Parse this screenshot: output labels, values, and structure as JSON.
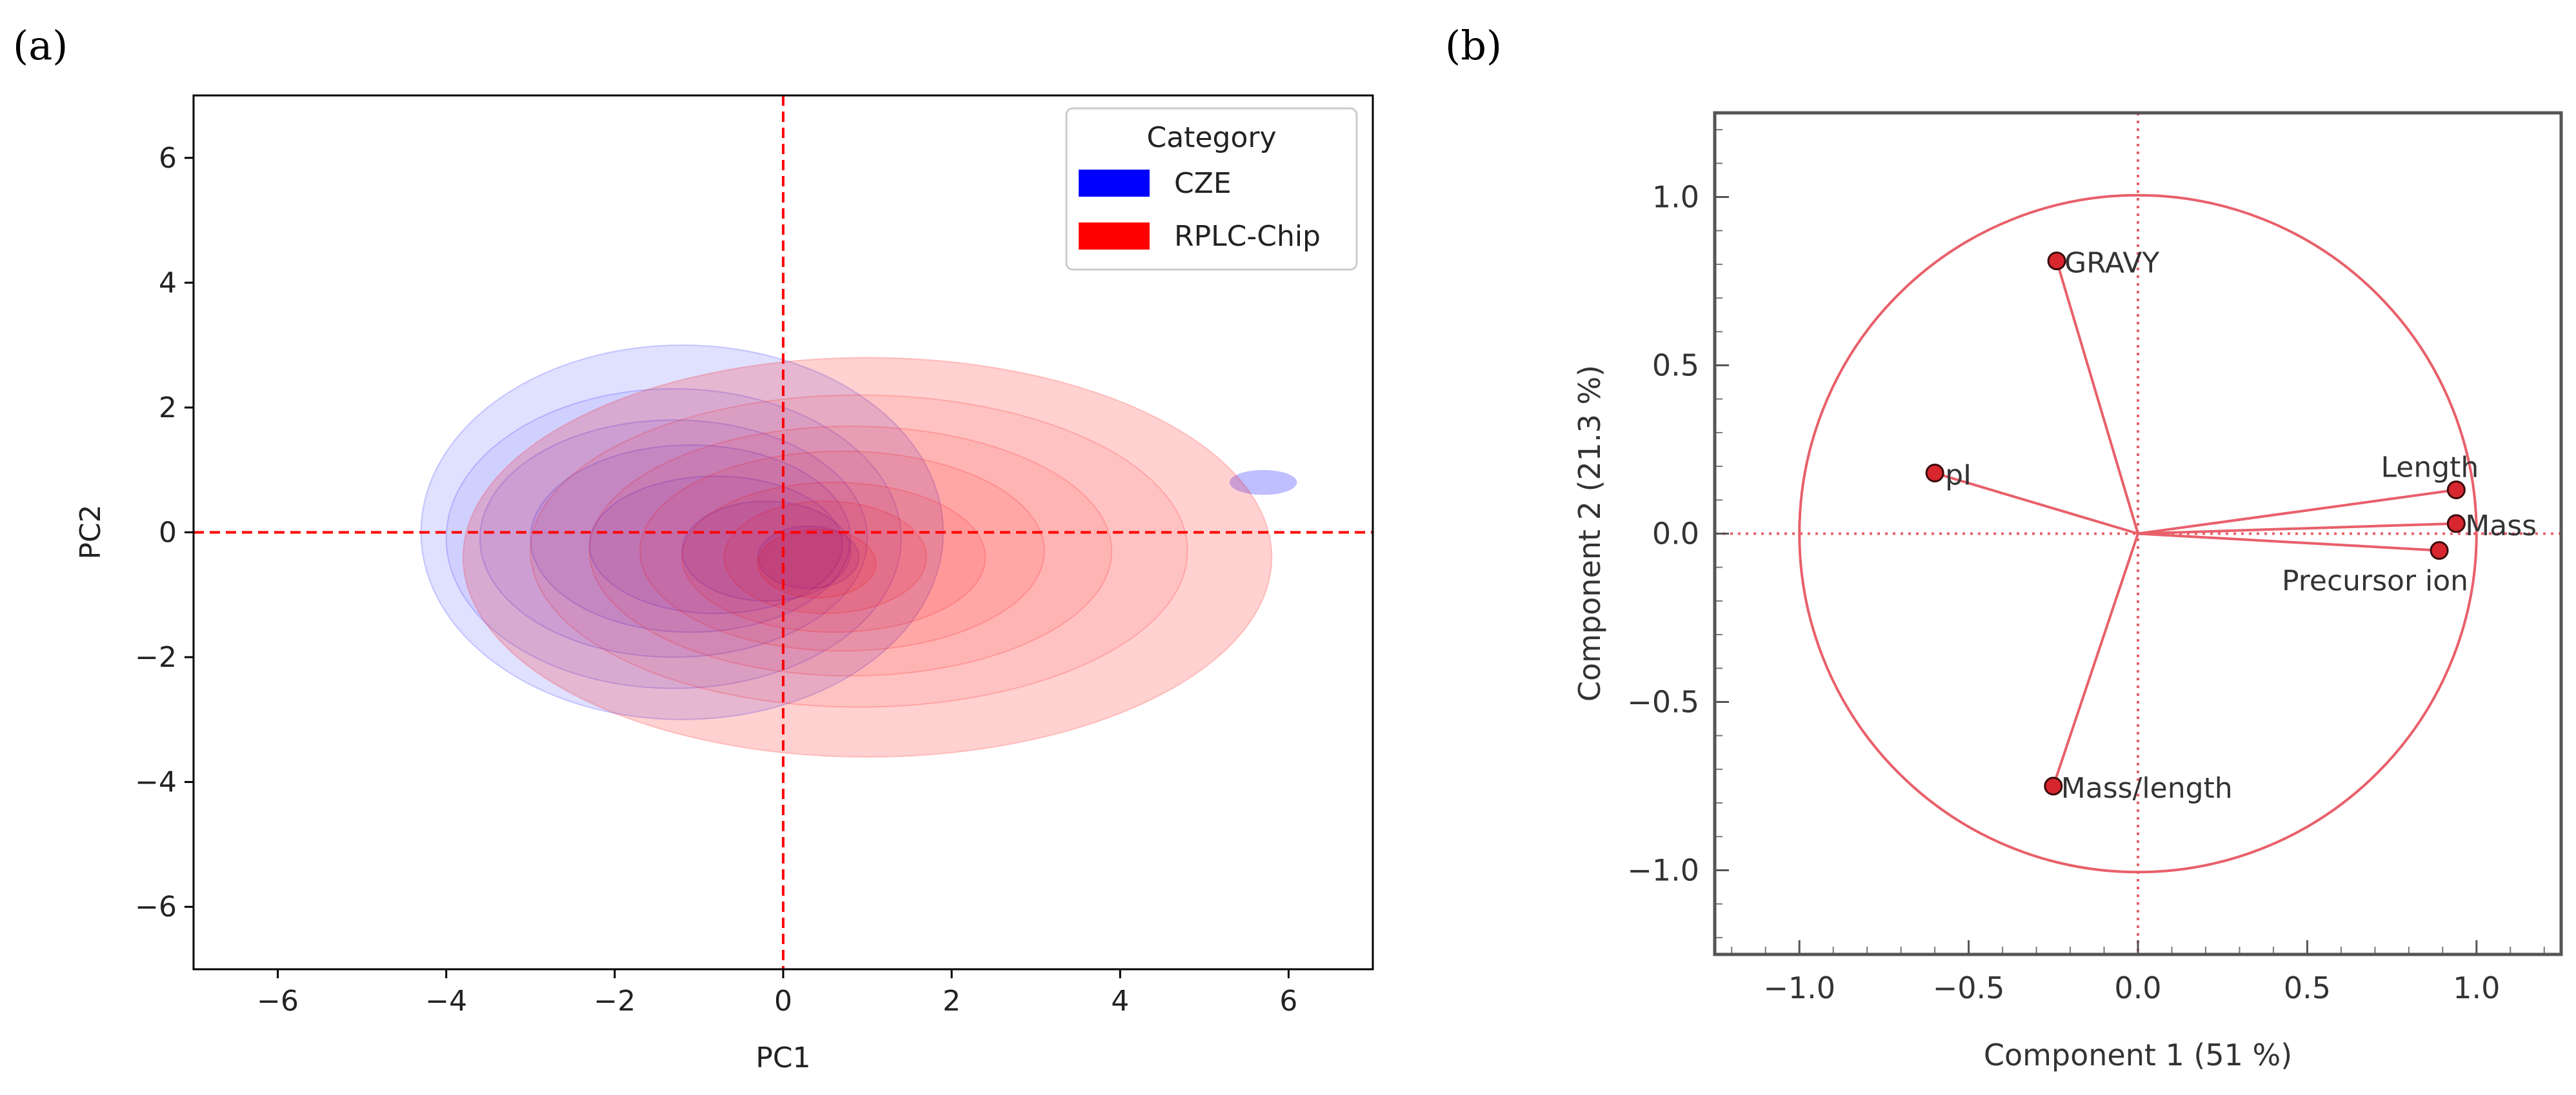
{
  "chart_data": [
    {
      "panel": "(a)",
      "type": "kde-density-contour",
      "xlabel": "PC1",
      "ylabel": "PC2",
      "xlim": [
        -7,
        7
      ],
      "ylim": [
        -7,
        7
      ],
      "xticks": [
        -6,
        -4,
        -2,
        0,
        2,
        4,
        6
      ],
      "yticks": [
        -6,
        -4,
        -2,
        0,
        2,
        4,
        6
      ],
      "reference_lines": {
        "x": 0,
        "y": 0,
        "color": "#ff0000",
        "style": "dashed"
      },
      "legend": {
        "title": "Category",
        "position": "top-right",
        "entries": [
          {
            "label": "CZE",
            "color": "#0000ff"
          },
          {
            "label": "RPLC-Chip",
            "color": "#ff0000"
          }
        ]
      },
      "series": [
        {
          "name": "CZE",
          "color": "#0000ff",
          "levels": [
            {
              "cx": -1.2,
              "cy": 0.0,
              "rx": 3.1,
              "ry": 3.0,
              "opacity": 0.12
            },
            {
              "cx": -1.3,
              "cy": -0.1,
              "rx": 2.7,
              "ry": 2.4,
              "opacity": 0.07
            },
            {
              "cx": -1.3,
              "cy": -0.1,
              "rx": 2.3,
              "ry": 1.9,
              "opacity": 0.07
            },
            {
              "cx": -1.1,
              "cy": -0.1,
              "rx": 1.9,
              "ry": 1.5,
              "opacity": 0.07
            },
            {
              "cx": -0.8,
              "cy": -0.2,
              "rx": 1.5,
              "ry": 1.1,
              "opacity": 0.07
            },
            {
              "cx": -0.2,
              "cy": -0.3,
              "rx": 1.0,
              "ry": 0.8,
              "opacity": 0.08
            },
            {
              "cx": 0.3,
              "cy": -0.4,
              "rx": 0.6,
              "ry": 0.5,
              "opacity": 0.1
            }
          ],
          "tail": {
            "cx": 5.7,
            "cy": 0.8,
            "rx": 0.4,
            "ry": 0.2,
            "opacity": 0.25
          }
        },
        {
          "name": "RPLC-Chip",
          "color": "#ff0000",
          "levels": [
            {
              "cx": 1.0,
              "cy": -0.4,
              "rx": 4.8,
              "ry": 3.2,
              "opacity": 0.18
            },
            {
              "cx": 0.9,
              "cy": -0.3,
              "rx": 3.9,
              "ry": 2.5,
              "opacity": 0.07
            },
            {
              "cx": 0.8,
              "cy": -0.3,
              "rx": 3.1,
              "ry": 2.0,
              "opacity": 0.07
            },
            {
              "cx": 0.7,
              "cy": -0.3,
              "rx": 2.4,
              "ry": 1.6,
              "opacity": 0.07
            },
            {
              "cx": 0.6,
              "cy": -0.4,
              "rx": 1.8,
              "ry": 1.2,
              "opacity": 0.08
            },
            {
              "cx": 0.5,
              "cy": -0.4,
              "rx": 1.2,
              "ry": 0.9,
              "opacity": 0.09
            },
            {
              "cx": 0.4,
              "cy": -0.5,
              "rx": 0.7,
              "ry": 0.55,
              "opacity": 0.1
            }
          ]
        }
      ]
    },
    {
      "panel": "(b)",
      "type": "pca-loading-plot",
      "xlabel": "Component 1 (51 %)",
      "ylabel": "Component 2 (21.3 %)",
      "xlim": [
        -1.25,
        1.25
      ],
      "ylim": [
        -1.25,
        1.25
      ],
      "xticks": [
        -1.0,
        -0.5,
        0.0,
        0.5,
        1.0
      ],
      "yticks": [
        -1.0,
        -0.5,
        0.0,
        0.5,
        1.0
      ],
      "tick_labels": [
        "−1.0",
        "−0.5",
        "0.0",
        "0.5",
        "1.0"
      ],
      "unit_circle_radius": 1.0,
      "color": "#e8606a",
      "points": [
        {
          "label": "GRAVY",
          "x": -0.24,
          "y": 0.81
        },
        {
          "label": "pI",
          "x": -0.6,
          "y": 0.18
        },
        {
          "label": "Length",
          "x": 0.94,
          "y": 0.13
        },
        {
          "label": "Mass",
          "x": 0.94,
          "y": 0.03
        },
        {
          "label": "Precursor ion",
          "x": 0.89,
          "y": -0.05
        },
        {
          "label": "Mass/length",
          "x": -0.25,
          "y": -0.75
        }
      ]
    }
  ],
  "panel_labels": {
    "a": "(a)",
    "b": "(b)"
  }
}
